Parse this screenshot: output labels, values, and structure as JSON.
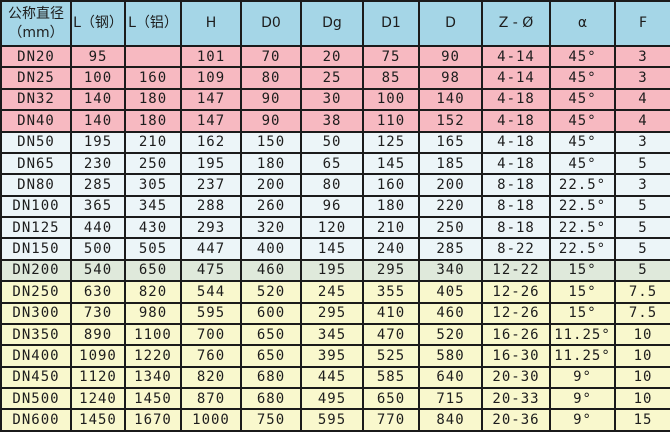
{
  "colors": {
    "header": "#a5d6e7",
    "pink": "#f7b9c1",
    "blue": "#ecf5f8",
    "green": "#dfe9db",
    "yellow": "#f9f8cd",
    "border": "#1b1b1b",
    "text": "#1d1d1d"
  },
  "chart_data": {
    "type": "table",
    "columns": [
      "公称直径\n（mm）",
      "L（钢）",
      "L（铝）",
      "H",
      "D0",
      "Dg",
      "D1",
      "D",
      "Z - Ø",
      "α",
      "F"
    ],
    "rows": [
      {
        "section": "pink",
        "cells": [
          "DN20",
          "95",
          "",
          "101",
          "70",
          "20",
          "75",
          "90",
          "4-14",
          "45°",
          "3"
        ]
      },
      {
        "section": "pink",
        "cells": [
          "DN25",
          "100",
          "160",
          "109",
          "80",
          "25",
          "85",
          "98",
          "4-14",
          "45°",
          "3"
        ]
      },
      {
        "section": "pink",
        "cells": [
          "DN32",
          "140",
          "180",
          "147",
          "90",
          "30",
          "100",
          "140",
          "4-18",
          "45°",
          "4"
        ]
      },
      {
        "section": "pink",
        "cells": [
          "DN40",
          "140",
          "180",
          "147",
          "90",
          "38",
          "110",
          "152",
          "4-18",
          "45°",
          "4"
        ]
      },
      {
        "section": "blue",
        "cells": [
          "DN50",
          "195",
          "210",
          "162",
          "150",
          "50",
          "125",
          "165",
          "4-18",
          "45°",
          "3"
        ]
      },
      {
        "section": "blue",
        "cells": [
          "DN65",
          "230",
          "250",
          "195",
          "180",
          "65",
          "145",
          "185",
          "4-18",
          "45°",
          "5"
        ]
      },
      {
        "section": "blue",
        "cells": [
          "DN80",
          "285",
          "305",
          "237",
          "200",
          "80",
          "160",
          "200",
          "8-18",
          "22.5°",
          "3"
        ]
      },
      {
        "section": "blue",
        "cells": [
          "DN100",
          "365",
          "345",
          "288",
          "260",
          "96",
          "180",
          "220",
          "8-18",
          "22.5°",
          "5"
        ]
      },
      {
        "section": "blue",
        "cells": [
          "DN125",
          "440",
          "430",
          "293",
          "320",
          "120",
          "210",
          "250",
          "8-18",
          "22.5°",
          "5"
        ]
      },
      {
        "section": "blue",
        "cells": [
          "DN150",
          "500",
          "505",
          "447",
          "400",
          "145",
          "240",
          "285",
          "8-22",
          "22.5°",
          "5"
        ]
      },
      {
        "section": "green",
        "cells": [
          "DN200",
          "540",
          "650",
          "475",
          "460",
          "195",
          "295",
          "340",
          "12-22",
          "15°",
          "5"
        ]
      },
      {
        "section": "yellow",
        "cells": [
          "DN250",
          "630",
          "820",
          "544",
          "520",
          "245",
          "355",
          "405",
          "12-26",
          "15°",
          "7.5"
        ]
      },
      {
        "section": "yellow",
        "cells": [
          "DN300",
          "730",
          "980",
          "595",
          "600",
          "295",
          "410",
          "460",
          "12-26",
          "15°",
          "7.5"
        ]
      },
      {
        "section": "yellow",
        "cells": [
          "DN350",
          "890",
          "1100",
          "700",
          "650",
          "345",
          "470",
          "520",
          "16-26",
          "11.25°",
          "10"
        ]
      },
      {
        "section": "yellow",
        "cells": [
          "DN400",
          "1090",
          "1220",
          "760",
          "650",
          "395",
          "525",
          "580",
          "16-30",
          "11.25°",
          "10"
        ]
      },
      {
        "section": "yellow",
        "cells": [
          "DN450",
          "1120",
          "1340",
          "820",
          "680",
          "445",
          "585",
          "640",
          "20-30",
          "9°",
          "10"
        ]
      },
      {
        "section": "yellow",
        "cells": [
          "DN500",
          "1240",
          "1450",
          "870",
          "680",
          "495",
          "650",
          "715",
          "20-33",
          "9°",
          "10"
        ]
      },
      {
        "section": "yellow",
        "cells": [
          "DN600",
          "1450",
          "1670",
          "1000",
          "750",
          "595",
          "770",
          "840",
          "20-36",
          "9°",
          "15"
        ]
      }
    ]
  }
}
